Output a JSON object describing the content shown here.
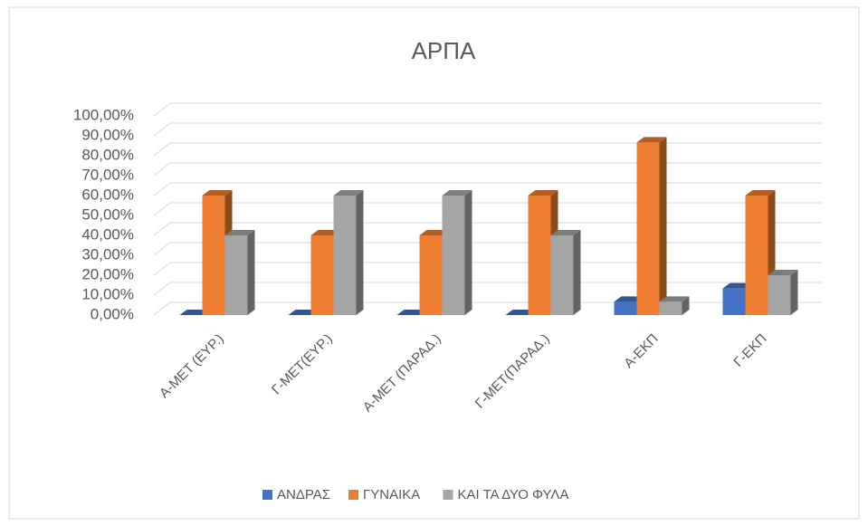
{
  "chart_data": {
    "type": "bar3d",
    "title": "ΑΡΠΑ",
    "categories": [
      "Α-ΜΕΤ (ΕΥΡ.)",
      "Γ-ΜΕΤ(ΕΥΡ.)",
      "Α-ΜΕΤ (ΠΑΡΑΔ.)",
      "Γ-ΜΕΤ(ΠΑΡΑΔ.)",
      "Α-ΕΚΠ",
      "Γ-ΕΚΠ"
    ],
    "series": [
      {
        "name": "ΑΝΔΡΑΣ",
        "color": "#4472c4",
        "values": [
          0,
          0,
          0,
          0,
          6.67,
          13.33
        ]
      },
      {
        "name": "ΓΥΝΑΙΚΑ",
        "color": "#ed7d31",
        "values": [
          60,
          40,
          40,
          60,
          86.67,
          60
        ]
      },
      {
        "name": "ΚΑΙ ΤΑ ΔΥΟ ΦΥΛΑ",
        "color": "#a5a5a5",
        "values": [
          40,
          60,
          60,
          40,
          6.67,
          20
        ]
      }
    ],
    "ylim": [
      0,
      100
    ],
    "yticks": [
      {
        "value": 0,
        "label": "0,00%"
      },
      {
        "value": 10,
        "label": "10,00%"
      },
      {
        "value": 20,
        "label": "20,00%"
      },
      {
        "value": 30,
        "label": "30,00%"
      },
      {
        "value": 40,
        "label": "40,00%"
      },
      {
        "value": 50,
        "label": "50,00%"
      },
      {
        "value": 60,
        "label": "60,00%"
      },
      {
        "value": 70,
        "label": "70,00%"
      },
      {
        "value": 80,
        "label": "80,00%"
      },
      {
        "value": 90,
        "label": "90,00%"
      },
      {
        "value": 100,
        "label": "100,00%"
      }
    ],
    "grid": true,
    "legend": "bottom"
  }
}
